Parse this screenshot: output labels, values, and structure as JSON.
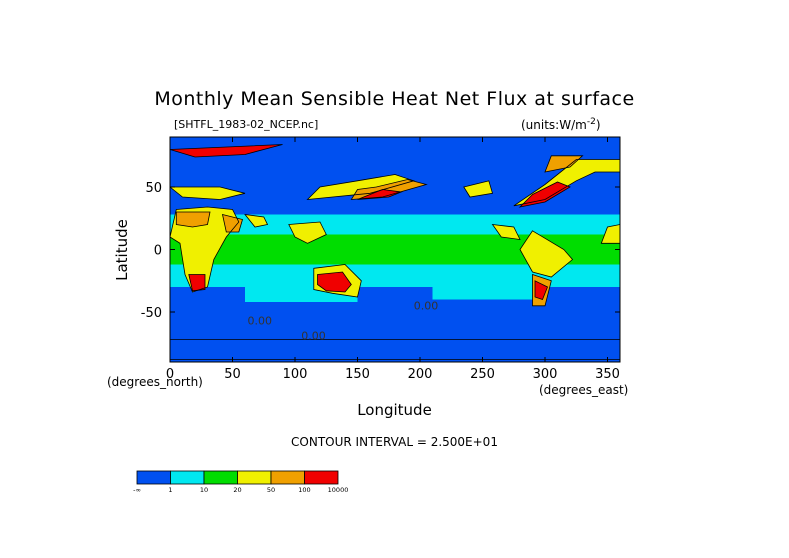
{
  "chart_data": {
    "type": "heatmap",
    "title": "Monthly Mean Sensible Heat Net Flux at surface",
    "file_label": "[SHTFL_1983-02_NCEP.nc]",
    "units_label": "(units:W/m^-2)",
    "xlabel": "Longitude",
    "ylabel": "Latitude",
    "x_unit_label": "(degrees_east)",
    "y_unit_label": "(degrees_north)",
    "xlim": [
      0,
      360
    ],
    "ylim": [
      -90,
      90
    ],
    "x_ticks": [
      0,
      50,
      100,
      150,
      200,
      250,
      300,
      350
    ],
    "y_ticks": [
      -50,
      0,
      50
    ],
    "contour_interval_text": "CONTOUR INTERVAL = 2.500E+01",
    "contour_labels": [
      "0.00",
      "0.00",
      "0.00"
    ],
    "colorbar": {
      "colors": [
        "#0050f0",
        "#00e8f0",
        "#00dd00",
        "#f0f000",
        "#f0a000",
        "#f00000"
      ],
      "tick_labels": [
        "-∞",
        "1",
        "10",
        "20",
        "50",
        "100",
        "10000"
      ]
    },
    "regions": [
      {
        "type": "rect",
        "lon": [
          0,
          360
        ],
        "lat": [
          -90,
          90
        ],
        "level": 0
      },
      {
        "type": "rect",
        "lon": [
          0,
          360
        ],
        "lat": [
          -30,
          28
        ],
        "level": 1
      },
      {
        "type": "rect",
        "lon": [
          60,
          150
        ],
        "lat": [
          -42,
          -28
        ],
        "level": 1
      },
      {
        "type": "rect",
        "lon": [
          210,
          300
        ],
        "lat": [
          -40,
          -28
        ],
        "level": 1
      },
      {
        "type": "rect",
        "lon": [
          0,
          360
        ],
        "lat": [
          -12,
          12
        ],
        "level": 2
      },
      {
        "type": "rect",
        "lon": [
          170,
          260
        ],
        "lat": [
          18,
          28
        ],
        "level": 1
      },
      {
        "type": "poly",
        "pts": [
          [
            5,
            32
          ],
          [
            30,
            34
          ],
          [
            50,
            32
          ],
          [
            55,
            22
          ],
          [
            45,
            10
          ],
          [
            35,
            -8
          ],
          [
            30,
            -30
          ],
          [
            18,
            -34
          ],
          [
            12,
            -20
          ],
          [
            8,
            5
          ],
          [
            0,
            10
          ]
        ],
        "level": 3
      },
      {
        "type": "poly",
        "pts": [
          [
            5,
            30
          ],
          [
            32,
            30
          ],
          [
            30,
            20
          ],
          [
            18,
            18
          ],
          [
            5,
            20
          ]
        ],
        "level": 4
      },
      {
        "type": "poly",
        "pts": [
          [
            42,
            28
          ],
          [
            58,
            24
          ],
          [
            55,
            14
          ],
          [
            45,
            14
          ]
        ],
        "level": 4
      },
      {
        "type": "poly",
        "pts": [
          [
            15,
            -20
          ],
          [
            28,
            -20
          ],
          [
            28,
            -32
          ],
          [
            18,
            -33
          ]
        ],
        "level": 5
      },
      {
        "type": "poly",
        "pts": [
          [
            60,
            28
          ],
          [
            75,
            26
          ],
          [
            78,
            20
          ],
          [
            68,
            18
          ]
        ],
        "level": 3
      },
      {
        "type": "poly",
        "pts": [
          [
            95,
            20
          ],
          [
            120,
            22
          ],
          [
            125,
            12
          ],
          [
            110,
            5
          ],
          [
            100,
            10
          ]
        ],
        "level": 3
      },
      {
        "type": "poly",
        "pts": [
          [
            115,
            -15
          ],
          [
            140,
            -12
          ],
          [
            153,
            -25
          ],
          [
            150,
            -38
          ],
          [
            130,
            -35
          ],
          [
            115,
            -32
          ]
        ],
        "level": 3
      },
      {
        "type": "poly",
        "pts": [
          [
            118,
            -20
          ],
          [
            138,
            -18
          ],
          [
            145,
            -28
          ],
          [
            140,
            -34
          ],
          [
            125,
            -33
          ],
          [
            118,
            -28
          ]
        ],
        "level": 5
      },
      {
        "type": "poly",
        "pts": [
          [
            110,
            40
          ],
          [
            160,
            45
          ],
          [
            195,
            55
          ],
          [
            180,
            60
          ],
          [
            150,
            55
          ],
          [
            120,
            50
          ]
        ],
        "level": 3
      },
      {
        "type": "poly",
        "pts": [
          [
            145,
            40
          ],
          [
            170,
            42
          ],
          [
            205,
            52
          ],
          [
            190,
            56
          ],
          [
            165,
            50
          ],
          [
            150,
            48
          ]
        ],
        "level": 4
      },
      {
        "type": "poly",
        "pts": [
          [
            150,
            40
          ],
          [
            175,
            42
          ],
          [
            185,
            46
          ],
          [
            170,
            48
          ]
        ],
        "level": 5
      },
      {
        "type": "poly",
        "pts": [
          [
            275,
            35
          ],
          [
            300,
            40
          ],
          [
            325,
            55
          ],
          [
            340,
            62
          ],
          [
            360,
            62
          ],
          [
            360,
            72
          ],
          [
            325,
            72
          ],
          [
            300,
            52
          ]
        ],
        "level": 3
      },
      {
        "type": "poly",
        "pts": [
          [
            280,
            34
          ],
          [
            300,
            38
          ],
          [
            320,
            50
          ],
          [
            310,
            54
          ],
          [
            290,
            44
          ]
        ],
        "level": 5
      },
      {
        "type": "poly",
        "pts": [
          [
            300,
            62
          ],
          [
            320,
            66
          ],
          [
            330,
            75
          ],
          [
            305,
            75
          ]
        ],
        "level": 4
      },
      {
        "type": "poly",
        "pts": [
          [
            290,
            15
          ],
          [
            315,
            0
          ],
          [
            322,
            -8
          ],
          [
            305,
            -22
          ],
          [
            290,
            -18
          ],
          [
            280,
            0
          ]
        ],
        "level": 3
      },
      {
        "type": "poly",
        "pts": [
          [
            290,
            -20
          ],
          [
            305,
            -25
          ],
          [
            300,
            -45
          ],
          [
            290,
            -45
          ]
        ],
        "level": 4
      },
      {
        "type": "poly",
        "pts": [
          [
            292,
            -25
          ],
          [
            302,
            -30
          ],
          [
            298,
            -40
          ],
          [
            292,
            -38
          ]
        ],
        "level": 5
      },
      {
        "type": "poly",
        "pts": [
          [
            258,
            20
          ],
          [
            275,
            18
          ],
          [
            280,
            8
          ],
          [
            265,
            10
          ]
        ],
        "level": 3
      },
      {
        "type": "poly",
        "pts": [
          [
            0,
            50
          ],
          [
            40,
            50
          ],
          [
            60,
            45
          ],
          [
            40,
            40
          ],
          [
            10,
            42
          ]
        ],
        "level": 3
      },
      {
        "type": "poly",
        "pts": [
          [
            235,
            50
          ],
          [
            255,
            55
          ],
          [
            258,
            45
          ],
          [
            240,
            42
          ]
        ],
        "level": 3
      },
      {
        "type": "poly",
        "pts": [
          [
            345,
            5
          ],
          [
            360,
            5
          ],
          [
            360,
            20
          ],
          [
            350,
            18
          ]
        ],
        "level": 3
      },
      {
        "type": "poly",
        "pts": [
          [
            0,
            80
          ],
          [
            90,
            84
          ],
          [
            60,
            76
          ],
          [
            20,
            74
          ]
        ],
        "level": 5
      },
      {
        "type": "poly",
        "pts": [
          [
            0,
            -88
          ],
          [
            360,
            -88
          ],
          [
            360,
            -72
          ],
          [
            0,
            -72
          ]
        ],
        "level": 0
      }
    ]
  }
}
